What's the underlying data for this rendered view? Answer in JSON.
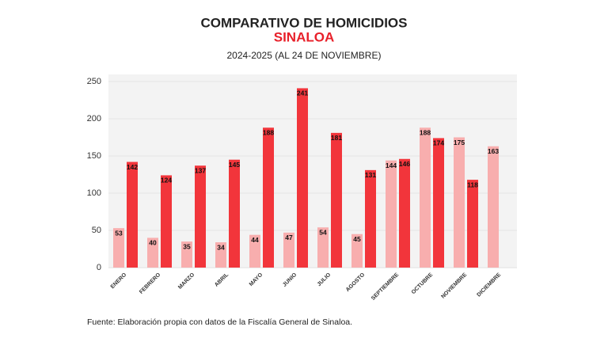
{
  "chart_data": {
    "type": "bar",
    "title": "COMPARATIVO DE HOMICIDIOS",
    "subtitle": "SINALOA",
    "subtitle2": "2024-2025 (AL 24 DE NOVIEMBRE)",
    "source": "Fuente: Elaboración propia con datos de la Fiscalía General de Sinaloa.",
    "categories": [
      "ENERO",
      "FEBRERO",
      "MARZO",
      "ABRIL",
      "MAYO",
      "JUNIO",
      "JULIO",
      "AGOSTO",
      "SEPTIEMBRE",
      "OCTUBRE",
      "NOVIEMBRE",
      "DICIEMBRE"
    ],
    "series": [
      {
        "color": "#f8aeae",
        "values": [
          53,
          40,
          35,
          34,
          44,
          47,
          54,
          45,
          144,
          188,
          175,
          163
        ]
      },
      {
        "color": "#f2353b",
        "values": [
          142,
          124,
          137,
          145,
          188,
          241,
          181,
          131,
          146,
          174,
          118,
          null
        ]
      }
    ],
    "ylim": [
      0,
      250
    ],
    "yticks": [
      0,
      50,
      100,
      150,
      200,
      250
    ],
    "grid": true
  }
}
